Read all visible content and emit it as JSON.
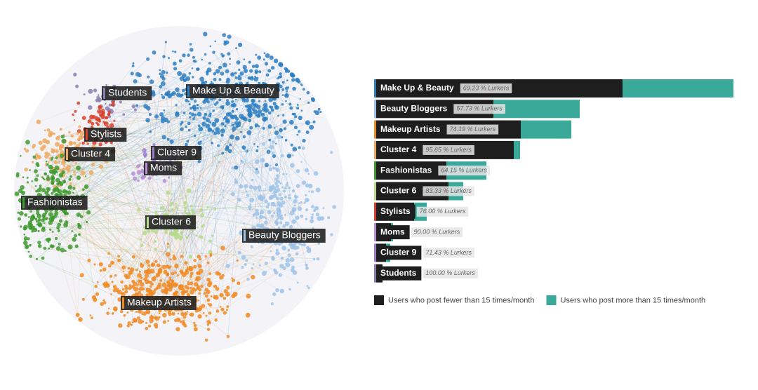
{
  "network": {
    "clusters": [
      {
        "name": "Students",
        "color": "#8a7fb0"
      },
      {
        "name": "Make Up & Beauty",
        "color": "#2e7fc2"
      },
      {
        "name": "Stylists",
        "color": "#d9402b"
      },
      {
        "name": "Cluster 4",
        "color": "#f0a860"
      },
      {
        "name": "Cluster 9",
        "color": "#9b7ed0"
      },
      {
        "name": "Moms",
        "color": "#b98fd6"
      },
      {
        "name": "Fashionistas",
        "color": "#3f9a2f"
      },
      {
        "name": "Cluster 6",
        "color": "#b6d98a"
      },
      {
        "name": "Beauty Bloggers",
        "color": "#9fc3e8"
      },
      {
        "name": "Makeup Artists",
        "color": "#f08a24"
      }
    ]
  },
  "chart_data": {
    "type": "stacked-bar-horizontal",
    "categories": [
      "Make Up & Beauty",
      "Beauty Bloggers",
      "Makeup Artists",
      "Cluster 4",
      "Fashionistas",
      "Cluster 6",
      "Stylists",
      "Moms",
      "Cluster 9",
      "Students"
    ],
    "category_colors": [
      "#2e7fc2",
      "#9fc3e8",
      "#f08a24",
      "#f0a860",
      "#3f9a2f",
      "#b6d98a",
      "#d9402b",
      "#b98fd6",
      "#9b7ed0",
      "#8a7fb0"
    ],
    "lurker_labels": [
      "69.23 % Lurkers",
      "57.73 % Lurkers",
      "74.19 % Lurkers",
      "95.65 % Lurkers",
      "64.15 % Lurkers",
      "83.33 % Lurkers",
      "76.00 % Lurkers",
      "90.00 % Lurkers",
      "71.43 % Lurkers",
      "100.00 % Lurkers"
    ],
    "series": [
      {
        "name": "Users who post fewer than 15 times/month",
        "color": "#1e1e1e",
        "values": [
          352,
          168,
          207,
          197,
          101,
          104,
          55,
          22,
          15,
          10
        ]
      },
      {
        "name": "Users who post more than 15 times/month",
        "color": "#3aa99a",
        "values": [
          158,
          123,
          72,
          9,
          57,
          21,
          18,
          3,
          6,
          0
        ]
      }
    ],
    "xlim": [
      0,
      520
    ]
  }
}
